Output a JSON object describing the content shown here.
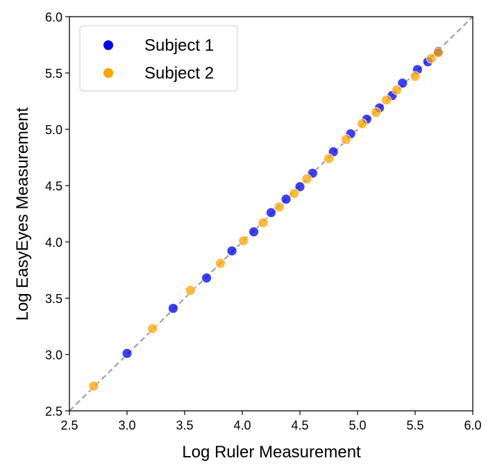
{
  "chart_data": {
    "type": "scatter",
    "title": "",
    "xlabel": "Log Ruler Measurement",
    "ylabel": "Log EasyEyes Measurement",
    "xlim": [
      2.5,
      6.0
    ],
    "ylim": [
      2.5,
      6.0
    ],
    "xticks": [
      "2.5",
      "3.0",
      "3.5",
      "4.0",
      "4.5",
      "5.0",
      "5.5",
      "6.0"
    ],
    "yticks": [
      "2.5",
      "3.0",
      "3.5",
      "4.0",
      "4.5",
      "5.0",
      "5.5",
      "6.0"
    ],
    "grid": false,
    "legend_position": "top-left",
    "reference_line": {
      "style": "dashed",
      "color": "#a0a0a0",
      "from": [
        2.5,
        2.5
      ],
      "to": [
        6.0,
        6.0
      ]
    },
    "series": [
      {
        "name": "Subject 1",
        "color": "#0000ee",
        "points": [
          [
            3.0,
            3.01
          ],
          [
            3.4,
            3.41
          ],
          [
            3.69,
            3.68
          ],
          [
            3.91,
            3.92
          ],
          [
            4.1,
            4.09
          ],
          [
            4.25,
            4.26
          ],
          [
            4.38,
            4.38
          ],
          [
            4.5,
            4.49
          ],
          [
            4.61,
            4.61
          ],
          [
            4.79,
            4.8
          ],
          [
            4.94,
            4.96
          ],
          [
            5.08,
            5.09
          ],
          [
            5.19,
            5.19
          ],
          [
            5.3,
            5.3
          ],
          [
            5.39,
            5.41
          ],
          [
            5.52,
            5.53
          ],
          [
            5.61,
            5.6
          ],
          [
            5.7,
            5.69
          ]
        ]
      },
      {
        "name": "Subject 2",
        "color": "#ffa500",
        "points": [
          [
            2.71,
            2.72
          ],
          [
            3.22,
            3.23
          ],
          [
            3.55,
            3.57
          ],
          [
            3.81,
            3.81
          ],
          [
            4.01,
            4.01
          ],
          [
            4.18,
            4.17
          ],
          [
            4.32,
            4.31
          ],
          [
            4.45,
            4.43
          ],
          [
            4.56,
            4.56
          ],
          [
            4.75,
            4.74
          ],
          [
            4.9,
            4.91
          ],
          [
            5.04,
            5.05
          ],
          [
            5.16,
            5.15
          ],
          [
            5.25,
            5.26
          ],
          [
            5.34,
            5.35
          ],
          [
            5.5,
            5.47
          ],
          [
            5.64,
            5.63
          ],
          [
            5.7,
            5.68
          ]
        ]
      }
    ]
  }
}
